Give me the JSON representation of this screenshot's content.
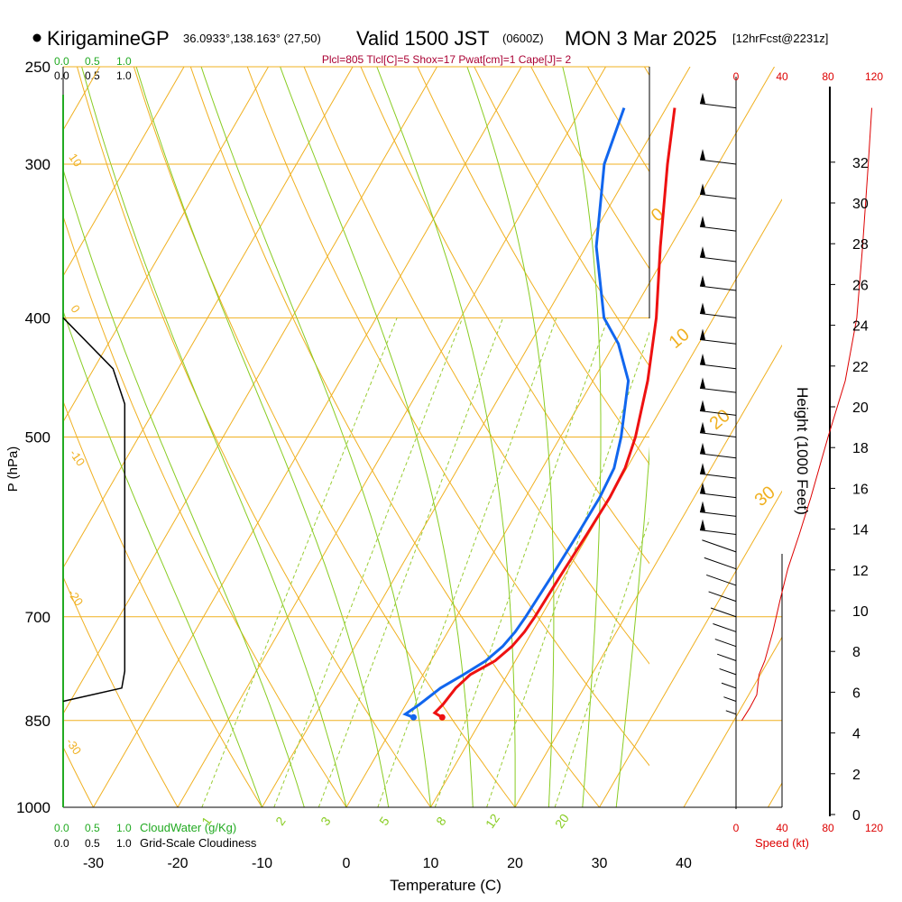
{
  "header": {
    "station": "KirigamineGP",
    "coords": "36.0933°,138.163° (27,50)",
    "valid": "Valid 1500 JST",
    "utc": "(0600Z)",
    "date": "MON 3 Mar 2025",
    "forecast": "[12hrFcst@2231z]"
  },
  "indices": "Plcl=805 Tlcl[C]=5 Shox=17 Pwat[cm]=1 Cape[J]= 2",
  "labels": {
    "cloudwater_top": [
      "0.0",
      "0.5",
      "1.0"
    ],
    "cloudiness_top": [
      "0.0",
      "0.5",
      "1.0"
    ],
    "cloudwater_bottom": [
      "0.0",
      "0.5",
      "1.0"
    ],
    "cloudiness_bottom": [
      "0.0",
      "0.5",
      "1.0"
    ],
    "cloudwater_caption": "CloudWater (g/Kg)",
    "cloudiness_caption": "Grid-Scale Cloudiness",
    "speed_caption": "Speed (kt)",
    "speed_ticks": [
      "0",
      "40",
      "80",
      "120"
    ]
  },
  "colors": {
    "temp": "#ee1111",
    "dewpoint": "#1166ee",
    "isotherm": "#f0b020",
    "adiabat": "#88cc22",
    "mixing": "#99cc33",
    "title_red": "#aa0033",
    "speed_red": "#dd0000",
    "cloud_green": "#22aa22"
  },
  "chart_data": {
    "type": "skew-t",
    "title": "KirigamineGP Valid 1500 JST (0600Z) MON 3 Mar 2025",
    "xlabel": "Temperature (C)",
    "ylabel": "P (hPa)",
    "height_label": "Height (1000 Feet)",
    "x_ticks": [
      -30,
      -20,
      -10,
      0,
      10,
      20,
      30,
      40
    ],
    "pressure_levels": [
      250,
      300,
      400,
      500,
      700,
      850,
      1000
    ],
    "height_ticks": [
      0,
      2,
      4,
      6,
      8,
      10,
      12,
      14,
      16,
      18,
      20,
      22,
      24,
      26,
      28,
      30,
      32
    ],
    "isotherm_labels": [
      "10",
      "0",
      "-10",
      "-20",
      "-30",
      "0",
      "10",
      "20",
      "30"
    ],
    "mixing_ratio_labels": [
      "1",
      "2",
      "3",
      "5",
      "8",
      "12",
      "20"
    ],
    "temperature": [
      {
        "p": 845,
        "t": 5.2
      },
      {
        "p": 838,
        "t": 4.0
      },
      {
        "p": 825,
        "t": 4.4
      },
      {
        "p": 800,
        "t": 4.8
      },
      {
        "p": 780,
        "t": 5.6
      },
      {
        "p": 760,
        "t": 7.6
      },
      {
        "p": 740,
        "t": 8.6
      },
      {
        "p": 720,
        "t": 9.1
      },
      {
        "p": 700,
        "t": 9.3
      },
      {
        "p": 650,
        "t": 9.5
      },
      {
        "p": 600,
        "t": 9.8
      },
      {
        "p": 560,
        "t": 10.0
      },
      {
        "p": 530,
        "t": 9.8
      },
      {
        "p": 500,
        "t": 8.9
      },
      {
        "p": 450,
        "t": 6.5
      },
      {
        "p": 400,
        "t": 3.2
      },
      {
        "p": 350,
        "t": -1.2
      },
      {
        "p": 300,
        "t": -6.0
      },
      {
        "p": 270,
        "t": -9.0
      }
    ],
    "dewpoint": [
      {
        "p": 845,
        "t": 1.8
      },
      {
        "p": 840,
        "t": 0.6
      },
      {
        "p": 825,
        "t": 1.6
      },
      {
        "p": 800,
        "t": 3.0
      },
      {
        "p": 780,
        "t": 4.8
      },
      {
        "p": 760,
        "t": 6.5
      },
      {
        "p": 740,
        "t": 7.5
      },
      {
        "p": 720,
        "t": 8.0
      },
      {
        "p": 700,
        "t": 8.2
      },
      {
        "p": 650,
        "t": 8.5
      },
      {
        "p": 600,
        "t": 8.7
      },
      {
        "p": 560,
        "t": 8.8
      },
      {
        "p": 530,
        "t": 8.5
      },
      {
        "p": 500,
        "t": 7.2
      },
      {
        "p": 450,
        "t": 4.2
      },
      {
        "p": 420,
        "t": 0.5
      },
      {
        "p": 400,
        "t": -3.0
      },
      {
        "p": 350,
        "t": -8.8
      },
      {
        "p": 300,
        "t": -13.5
      },
      {
        "p": 270,
        "t": -15.0
      }
    ],
    "cloudiness_profile": [
      {
        "p": 400,
        "value": 0.0
      },
      {
        "p": 440,
        "value": 0.85
      },
      {
        "p": 470,
        "value": 1.05
      },
      {
        "p": 775,
        "value": 1.05
      },
      {
        "p": 800,
        "value": 1.0
      },
      {
        "p": 820,
        "value": 0.0
      }
    ],
    "wind_speed_profile": [
      {
        "p": 850,
        "kt": 5
      },
      {
        "p": 830,
        "kt": 12
      },
      {
        "p": 810,
        "kt": 18
      },
      {
        "p": 780,
        "kt": 20
      },
      {
        "p": 760,
        "kt": 25
      },
      {
        "p": 720,
        "kt": 32
      },
      {
        "p": 680,
        "kt": 38
      },
      {
        "p": 640,
        "kt": 45
      },
      {
        "p": 600,
        "kt": 55
      },
      {
        "p": 560,
        "kt": 65
      },
      {
        "p": 500,
        "kt": 80
      },
      {
        "p": 450,
        "kt": 95
      },
      {
        "p": 400,
        "kt": 105
      },
      {
        "p": 350,
        "kt": 110
      },
      {
        "p": 300,
        "kt": 115
      },
      {
        "p": 270,
        "kt": 118
      }
    ],
    "wind_barb_levels": [
      270,
      300,
      320,
      340,
      360,
      380,
      400,
      420,
      440,
      460,
      480,
      500,
      520,
      540,
      560,
      580,
      600,
      620,
      640,
      660,
      680,
      700,
      720,
      740,
      760,
      780,
      800,
      820,
      840
    ]
  }
}
